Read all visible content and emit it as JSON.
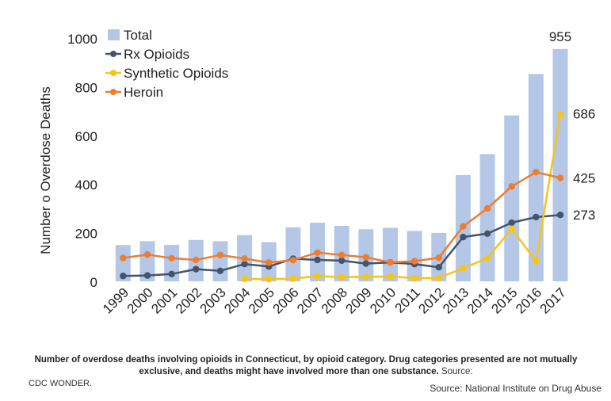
{
  "chart_data": {
    "type": "bar+line",
    "categories": [
      "1999",
      "2000",
      "2001",
      "2002",
      "2003",
      "2004",
      "2005",
      "2006",
      "2007",
      "2008",
      "2009",
      "2010",
      "2011",
      "2012",
      "2013",
      "2014",
      "2015",
      "2016",
      "2017"
    ],
    "bars": {
      "name": "Total",
      "color": "#b4c7e7",
      "values": [
        149,
        165,
        150,
        170,
        165,
        190,
        161,
        222,
        241,
        228,
        214,
        220,
        207,
        199,
        437,
        523,
        682,
        852,
        955
      ]
    },
    "series": [
      {
        "name": "Rx Opioids",
        "color": "#44546a",
        "values": [
          22,
          24,
          30,
          50,
          43,
          71,
          61,
          93,
          88,
          85,
          73,
          78,
          71,
          58,
          182,
          196,
          241,
          264,
          273
        ]
      },
      {
        "name": "Synthetic Opioids",
        "color": "#f5c518",
        "values": [
          null,
          null,
          null,
          null,
          null,
          10,
          9,
          11,
          22,
          17,
          19,
          20,
          13,
          14,
          54,
          95,
          216,
          83,
          686
        ]
      },
      {
        "name": "Heroin",
        "color": "#ed7d31",
        "values": [
          96,
          110,
          95,
          88,
          108,
          93,
          77,
          87,
          118,
          108,
          99,
          78,
          83,
          97,
          226,
          300,
          390,
          449,
          425
        ]
      }
    ],
    "ylabel": "Number o  Overdose Deaths",
    "yticks": [
      0,
      200,
      400,
      600,
      800,
      1000
    ],
    "ylim": [
      0,
      1000
    ],
    "grid": false,
    "legend_position": "top-left",
    "annotations": [
      "955",
      "686",
      "425",
      "273"
    ]
  },
  "caption": {
    "bold_text": "Number of overdose deaths involving opioids in Connecticut, by opioid category. Drug categories presented are not mutually exclusive, and deaths might have involved more than one substance.",
    "source_label": "Source:",
    "source_name": "CDC WONDER."
  },
  "credit": "Source: National Institute on Drug Abuse"
}
